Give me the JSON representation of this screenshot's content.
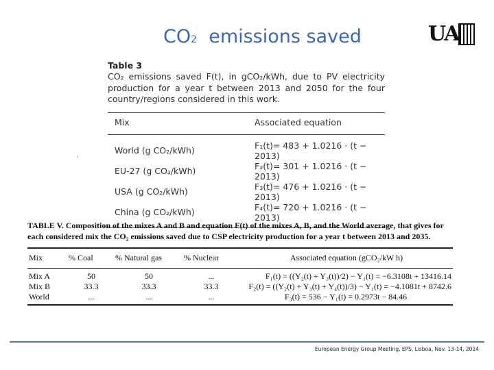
{
  "slide": {
    "title_pre": "CO",
    "title_sub": "2",
    "title_post": "emissions saved",
    "logo_text": "UA",
    "footer": "European Energy Group Meeting, EPS, Lisboa, Nov. 13-14, 2014"
  },
  "table3": {
    "title": "Table 3",
    "caption": "CO₂ emissions saved F(t), in gCO₂/kWh, due to PV electricity production for a year t between 2013 and 2050 for the four country/regions considered in this work.",
    "headers": [
      "Mix",
      "Associated equation"
    ],
    "rows": [
      {
        "mix": "World (g CO₂/kWh)",
        "eq": "F₁(t)= 483 + 1.0216 · (t − 2013)"
      },
      {
        "mix": "EU-27 (g CO₂/kWh)",
        "eq": "F₂(t)= 301 + 1.0216 · (t − 2013)"
      },
      {
        "mix": "USA (g CO₂/kWh)",
        "eq": "F₃(t)= 476 + 1.0216 · (t − 2013)"
      },
      {
        "mix": "China (g CO₂/kWh)",
        "eq": "F₄(t)= 720 + 1.0216 · (t − 2013)"
      }
    ]
  },
  "table5": {
    "caption": "TABLE V. Composition of the mixes A and B and equation F(t) of the mixes A, B, and the World average, that gives for each considered mix the CO₂ emissions saved due to CSP electricity production for a year t between 2013 and 2035.",
    "headers": [
      "Mix",
      "% Coal",
      "% Natural gas",
      "% Nuclear",
      "Associated equation (gCO₂/kW h)"
    ],
    "rows": [
      {
        "mix": "Mix A",
        "coal": "50",
        "gas": "50",
        "nuclear": "...",
        "eq": "F₁(t) = ((Y₂(t) + Y₃(t))/2) − Y₁(t) = −6.3108t + 13416.14"
      },
      {
        "mix": "Mix B",
        "coal": "33.3",
        "gas": "33.3",
        "nuclear": "33.3",
        "eq": "F₂(t) = ((Y₂(t) + Y₃(t) + Y₄(t))/3) − Y₁(t) = −4.1081t + 8742.6"
      },
      {
        "mix": "World",
        "coal": "...",
        "gas": "...",
        "nuclear": "...",
        "eq": "F₃(t) = 536 − Y₁(t) = 0.2973t − 84.46"
      }
    ]
  }
}
